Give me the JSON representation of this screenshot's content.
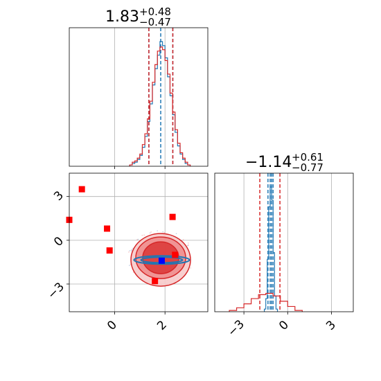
{
  "chart_data": [
    {
      "type": "histogram",
      "panel": "marginal-param-1",
      "title": {
        "value": "1.83",
        "upper": "+0.48",
        "lower": "−0.47"
      },
      "xlim": [
        -1.8,
        3.7
      ],
      "grid": true,
      "series": [
        {
          "color": "#1f77b4",
          "median": 1.83,
          "quantile_lines": [
            1.36,
            1.83,
            2.31
          ],
          "bin_edges": [
            0.6,
            0.7,
            0.8,
            0.9,
            1.0,
            1.1,
            1.2,
            1.3,
            1.4,
            1.5,
            1.6,
            1.7,
            1.8,
            1.9,
            2.0,
            2.1,
            2.2,
            2.3,
            2.4,
            2.5,
            2.6,
            2.7,
            2.8,
            2.9,
            3.0
          ],
          "counts": [
            1,
            2,
            3,
            5,
            8,
            14,
            22,
            33,
            46,
            60,
            72,
            82,
            92,
            89,
            80,
            66,
            52,
            38,
            25,
            15,
            9,
            5,
            2,
            1
          ]
        },
        {
          "color": "#d62728",
          "median": 1.83,
          "quantile_lines": [
            1.36,
            2.31
          ],
          "bin_edges": [
            0.6,
            0.7,
            0.8,
            0.9,
            1.0,
            1.1,
            1.2,
            1.3,
            1.4,
            1.5,
            1.6,
            1.7,
            1.8,
            1.9,
            2.0,
            2.1,
            2.2,
            2.3,
            2.4,
            2.5,
            2.6,
            2.7,
            2.8,
            2.9,
            3.0
          ],
          "counts": [
            1,
            3,
            4,
            6,
            9,
            16,
            24,
            35,
            48,
            62,
            75,
            85,
            88,
            86,
            78,
            68,
            54,
            40,
            27,
            17,
            10,
            6,
            3,
            1
          ]
        }
      ]
    },
    {
      "type": "histogram",
      "panel": "marginal-param-2",
      "title": {
        "value": "−1.14",
        "upper": "+0.61",
        "lower": "−0.77"
      },
      "xlim": [
        -5.0,
        4.5
      ],
      "xticks": [
        "−3",
        "0",
        "3"
      ],
      "grid": true,
      "series": [
        {
          "color": "#1f77b4",
          "quantile_lines": [
            -1.35,
            -1.2,
            -1.1,
            -1.0
          ],
          "bin_edges": [
            -1.6,
            -1.5,
            -1.4,
            -1.3,
            -1.2,
            -1.1,
            -1.0,
            -0.9,
            -0.8,
            -0.7
          ],
          "counts": [
            2,
            10,
            40,
            80,
            95,
            85,
            45,
            12,
            2
          ]
        },
        {
          "color": "#d62728",
          "median": -1.14,
          "quantile_lines": [
            -1.91,
            -0.53
          ],
          "bin_edges": [
            -4.0,
            -3.5,
            -3.0,
            -2.5,
            -2.0,
            -1.5,
            -1.0,
            -0.5,
            0.0,
            0.5,
            1.0
          ],
          "counts": [
            1,
            3,
            6,
            10,
            13,
            14,
            12,
            8,
            4,
            1
          ]
        }
      ]
    },
    {
      "type": "scatter",
      "panel": "joint-param-1-param-2",
      "xlim": [
        -1.8,
        3.7
      ],
      "ylim": [
        -4.9,
        4.6
      ],
      "xticks": [
        "0",
        "2"
      ],
      "yticks": [
        "3",
        "0",
        "−3"
      ],
      "grid": true,
      "markers": {
        "color": "#ff0000",
        "shape": "square",
        "points": [
          [
            -1.3,
            3.5
          ],
          [
            -1.8,
            1.4
          ],
          [
            -0.3,
            0.8
          ],
          [
            -0.2,
            -0.7
          ],
          [
            2.3,
            1.6
          ],
          [
            2.4,
            -1.0
          ],
          [
            1.6,
            -2.8
          ]
        ]
      },
      "truth": {
        "color": "#0000ff",
        "shape": "square",
        "point": [
          1.87,
          -1.4
        ]
      },
      "contours": [
        {
          "color": "#d62728",
          "filled": true,
          "center": [
            1.83,
            -1.2
          ],
          "levels": [
            0.9,
            0.6,
            0.3
          ]
        },
        {
          "color": "#1f77b4",
          "filled": false,
          "center": [
            1.87,
            -1.35
          ],
          "levels": [
            0.2,
            0.1
          ]
        }
      ]
    }
  ]
}
